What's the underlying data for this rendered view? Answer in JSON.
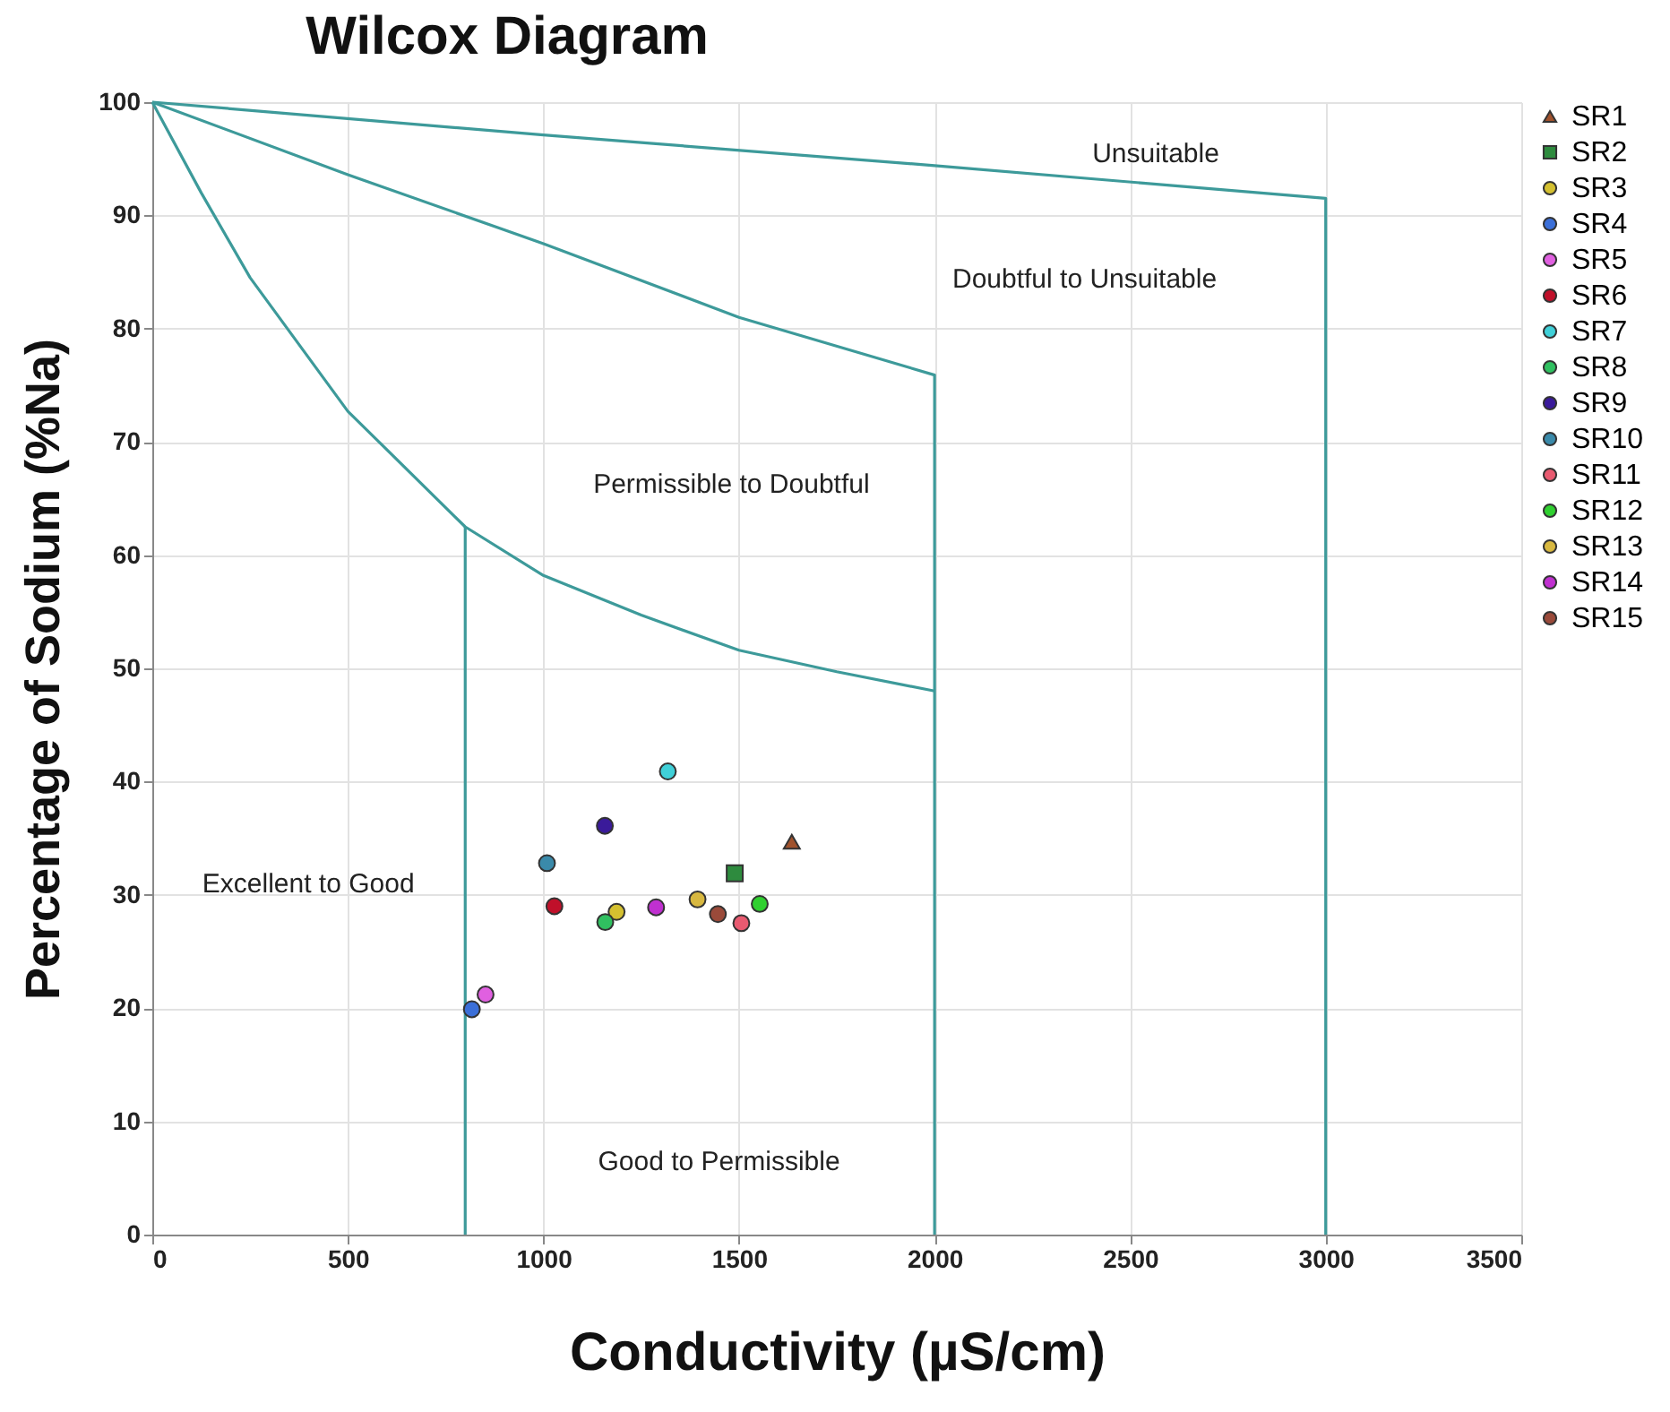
{
  "chart_data": {
    "type": "scatter",
    "title": "Wilcox Diagram",
    "xlabel": "Conductivity (µS/cm)",
    "ylabel": "Percentage of Sodium (%Na)",
    "xlim": [
      0,
      3500
    ],
    "xticks": [
      0,
      500,
      1000,
      1500,
      2000,
      2500,
      3000,
      3500
    ],
    "ylim": [
      0,
      100
    ],
    "yticks": [
      0,
      10,
      20,
      30,
      40,
      50,
      60,
      70,
      80,
      90,
      100
    ],
    "grid": true,
    "legend": "right",
    "annotations": [
      "Unsuitable",
      "Doubtful to Unsuitable",
      "Permissible to Doubtful",
      "Excellent to Good",
      "Good to Permissible"
    ],
    "series": [
      {
        "name": "SR1",
        "color": "#a0522d",
        "marker": "triangle",
        "x": [
          1635
        ],
        "values": [
          34.7
        ]
      },
      {
        "name": "SR2",
        "color": "#2e8b3e",
        "marker": "square",
        "x": [
          1489
        ],
        "values": [
          31.9
        ]
      },
      {
        "name": "SR3",
        "color": "#d4c030",
        "marker": "circle",
        "x": [
          1187
        ],
        "values": [
          28.5
        ]
      },
      {
        "name": "SR4",
        "color": "#3b6fd8",
        "marker": "circle",
        "x": [
          817
        ],
        "values": [
          19.9
        ]
      },
      {
        "name": "SR5",
        "color": "#e060e0",
        "marker": "circle",
        "x": [
          852
        ],
        "values": [
          21.2
        ]
      },
      {
        "name": "SR6",
        "color": "#c0102a",
        "marker": "circle",
        "x": [
          1028
        ],
        "values": [
          29.0
        ]
      },
      {
        "name": "SR7",
        "color": "#40d0d8",
        "marker": "circle",
        "x": [
          1318
        ],
        "values": [
          40.9
        ]
      },
      {
        "name": "SR8",
        "color": "#30c060",
        "marker": "circle",
        "x": [
          1158
        ],
        "values": [
          27.6
        ]
      },
      {
        "name": "SR9",
        "color": "#3a1a9a",
        "marker": "circle",
        "x": [
          1157
        ],
        "values": [
          36.1
        ]
      },
      {
        "name": "SR10",
        "color": "#3a8aaa",
        "marker": "circle",
        "x": [
          1009
        ],
        "values": [
          32.8
        ]
      },
      {
        "name": "SR11",
        "color": "#e85a70",
        "marker": "circle",
        "x": [
          1506
        ],
        "values": [
          27.5
        ]
      },
      {
        "name": "SR12",
        "color": "#30d030",
        "marker": "circle",
        "x": [
          1553
        ],
        "values": [
          29.2
        ]
      },
      {
        "name": "SR13",
        "color": "#d8b840",
        "marker": "circle",
        "x": [
          1394
        ],
        "values": [
          29.6
        ]
      },
      {
        "name": "SR14",
        "color": "#c030d0",
        "marker": "circle",
        "x": [
          1288
        ],
        "values": [
          28.9
        ]
      },
      {
        "name": "SR15",
        "color": "#9a4a3a",
        "marker": "circle",
        "x": [
          1446
        ],
        "values": [
          28.3
        ]
      },
      {
        "type": "line",
        "color": "#3d9a9a",
        "x": [
          0,
          1000,
          2000,
          3000,
          3000
        ],
        "values": [
          100,
          97.1,
          94.4,
          91.5,
          0
        ]
      },
      {
        "type": "line",
        "color": "#3d9a9a",
        "x": [
          0,
          500,
          1000,
          1500,
          2000,
          2000
        ],
        "values": [
          100,
          93.6,
          87.5,
          81.0,
          75.9,
          0
        ]
      },
      {
        "type": "line",
        "color": "#3d9a9a",
        "x": [
          0,
          125,
          250,
          500,
          800,
          1000,
          1250,
          1500,
          1750,
          2000
        ],
        "values": [
          100,
          92,
          84.5,
          72.7,
          62.5,
          58.2,
          54.7,
          51.6,
          49.7,
          48
        ]
      },
      {
        "type": "line",
        "color": "#3d9a9a",
        "x": [
          800,
          800
        ],
        "values": [
          62.5,
          0
        ]
      }
    ]
  }
}
